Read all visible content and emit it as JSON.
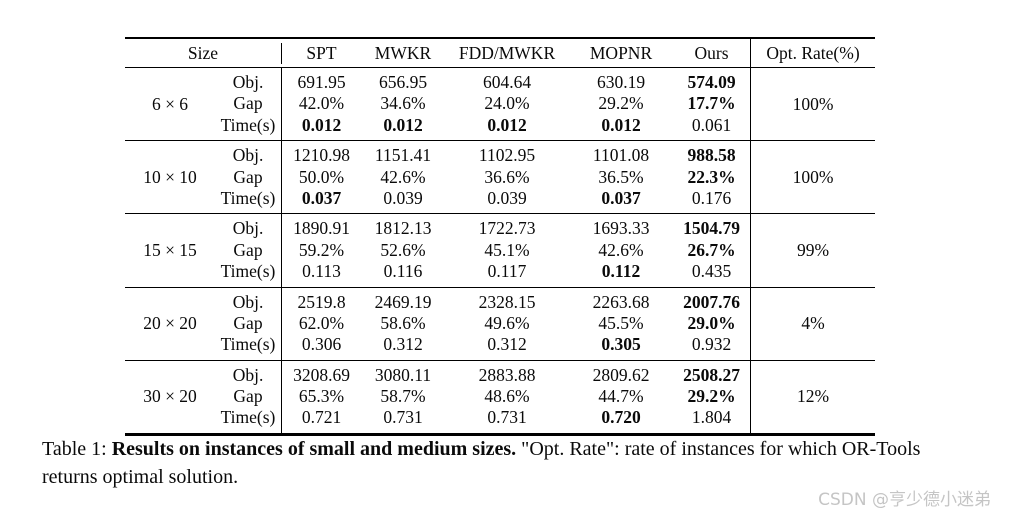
{
  "table": {
    "header": {
      "size": "Size",
      "columns": [
        "SPT",
        "MWKR",
        "FDD/MWKR",
        "MOPNR",
        "Ours"
      ],
      "opt_rate": "Opt. Rate(%)"
    },
    "blocks": [
      {
        "size": "6 × 6",
        "opt_rate": "100%",
        "rows": [
          {
            "label": "Obj.",
            "values": [
              "691.95",
              "656.95",
              "604.64",
              "630.19",
              "574.09"
            ],
            "bold": [
              0,
              0,
              0,
              0,
              1
            ]
          },
          {
            "label": "Gap",
            "values": [
              "42.0%",
              "34.6%",
              "24.0%",
              "29.2%",
              "17.7%"
            ],
            "bold": [
              0,
              0,
              0,
              0,
              1
            ]
          },
          {
            "label": "Time(s)",
            "values": [
              "0.012",
              "0.012",
              "0.012",
              "0.012",
              "0.061"
            ],
            "bold": [
              1,
              1,
              1,
              1,
              0
            ]
          }
        ]
      },
      {
        "size": "10 × 10",
        "opt_rate": "100%",
        "rows": [
          {
            "label": "Obj.",
            "values": [
              "1210.98",
              "1151.41",
              "1102.95",
              "1101.08",
              "988.58"
            ],
            "bold": [
              0,
              0,
              0,
              0,
              1
            ]
          },
          {
            "label": "Gap",
            "values": [
              "50.0%",
              "42.6%",
              "36.6%",
              "36.5%",
              "22.3%"
            ],
            "bold": [
              0,
              0,
              0,
              0,
              1
            ]
          },
          {
            "label": "Time(s)",
            "values": [
              "0.037",
              "0.039",
              "0.039",
              "0.037",
              "0.176"
            ],
            "bold": [
              1,
              0,
              0,
              1,
              0
            ]
          }
        ]
      },
      {
        "size": "15 × 15",
        "opt_rate": "99%",
        "rows": [
          {
            "label": "Obj.",
            "values": [
              "1890.91",
              "1812.13",
              "1722.73",
              "1693.33",
              "1504.79"
            ],
            "bold": [
              0,
              0,
              0,
              0,
              1
            ]
          },
          {
            "label": "Gap",
            "values": [
              "59.2%",
              "52.6%",
              "45.1%",
              "42.6%",
              "26.7%"
            ],
            "bold": [
              0,
              0,
              0,
              0,
              1
            ]
          },
          {
            "label": "Time(s)",
            "values": [
              "0.113",
              "0.116",
              "0.117",
              "0.112",
              "0.435"
            ],
            "bold": [
              0,
              0,
              0,
              1,
              0
            ]
          }
        ]
      },
      {
        "size": "20 × 20",
        "opt_rate": "4%",
        "rows": [
          {
            "label": "Obj.",
            "values": [
              "2519.8",
              "2469.19",
              "2328.15",
              "2263.68",
              "2007.76"
            ],
            "bold": [
              0,
              0,
              0,
              0,
              1
            ]
          },
          {
            "label": "Gap",
            "values": [
              "62.0%",
              "58.6%",
              "49.6%",
              "45.5%",
              "29.0%"
            ],
            "bold": [
              0,
              0,
              0,
              0,
              1
            ]
          },
          {
            "label": "Time(s)",
            "values": [
              "0.306",
              "0.312",
              "0.312",
              "0.305",
              "0.932"
            ],
            "bold": [
              0,
              0,
              0,
              1,
              0
            ]
          }
        ]
      },
      {
        "size": "30 × 20",
        "opt_rate": "12%",
        "rows": [
          {
            "label": "Obj.",
            "values": [
              "3208.69",
              "3080.11",
              "2883.88",
              "2809.62",
              "2508.27"
            ],
            "bold": [
              0,
              0,
              0,
              0,
              1
            ]
          },
          {
            "label": "Gap",
            "values": [
              "65.3%",
              "58.7%",
              "48.6%",
              "44.7%",
              "29.2%"
            ],
            "bold": [
              0,
              0,
              0,
              0,
              1
            ]
          },
          {
            "label": "Time(s)",
            "values": [
              "0.721",
              "0.731",
              "0.731",
              "0.720",
              "1.804"
            ],
            "bold": [
              0,
              0,
              0,
              1,
              0
            ]
          }
        ]
      }
    ]
  },
  "caption": {
    "prefix": "Table 1: ",
    "bold": "Results on instances of small and medium sizes.",
    "rest": " \"Opt. Rate\": rate of instances for which OR-Tools returns optimal solution."
  },
  "watermark": "CSDN @亨少德小迷弟"
}
